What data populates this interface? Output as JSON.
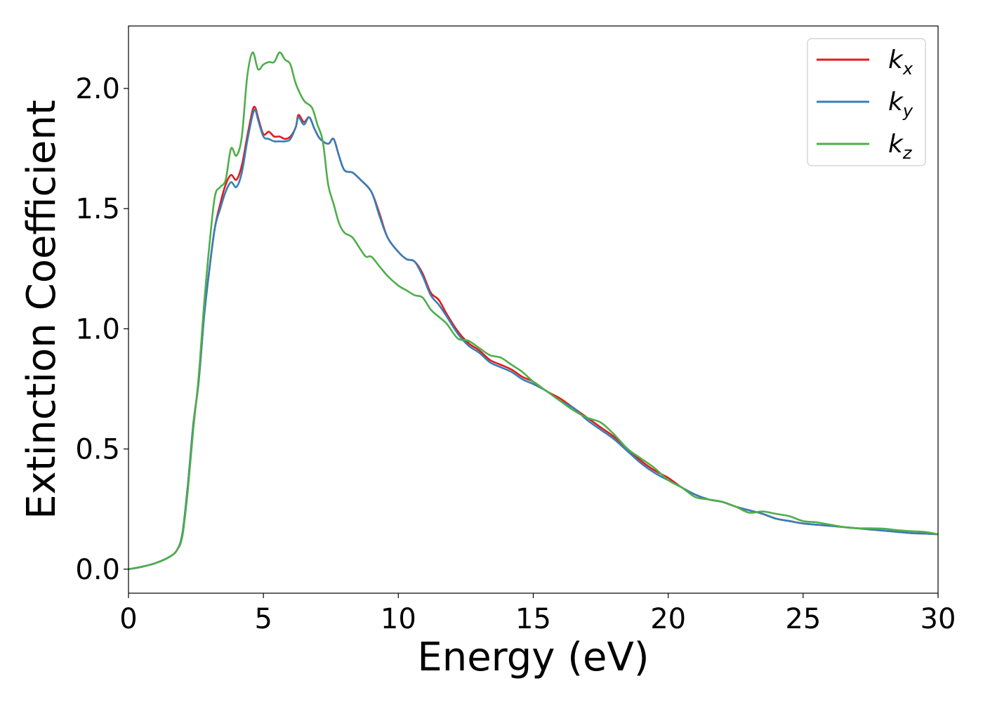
{
  "chart_data": {
    "type": "line",
    "xlabel": "Energy (eV)",
    "ylabel": "Extinction Coefficient",
    "xlim": [
      0,
      30
    ],
    "ylim": [
      -0.1,
      2.26
    ],
    "xticks": [
      0,
      5,
      10,
      15,
      20,
      25,
      30
    ],
    "xtick_labels": [
      "0",
      "5",
      "10",
      "15",
      "20",
      "25",
      "30"
    ],
    "yticks": [
      0.0,
      0.5,
      1.0,
      1.5,
      2.0
    ],
    "ytick_labels": [
      "0.0",
      "0.5",
      "1.0",
      "1.5",
      "2.0"
    ],
    "grid": false,
    "legend_position": "top-right",
    "series": [
      {
        "name": "k_x",
        "legend_base": "k",
        "legend_sub": "x",
        "color": "#e41a1c",
        "x": [
          0,
          0.5,
          1,
          1.5,
          1.8,
          2.0,
          2.2,
          2.4,
          2.6,
          2.8,
          3.0,
          3.2,
          3.4,
          3.6,
          3.8,
          4.0,
          4.2,
          4.4,
          4.6,
          4.7,
          4.8,
          5.0,
          5.2,
          5.4,
          5.6,
          5.8,
          6.0,
          6.2,
          6.3,
          6.5,
          6.7,
          6.9,
          7.1,
          7.4,
          7.6,
          7.8,
          8.0,
          8.3,
          8.6,
          9.0,
          9.3,
          9.6,
          10.0,
          10.3,
          10.6,
          10.9,
          11.2,
          11.5,
          11.8,
          12.2,
          12.6,
          13.0,
          13.4,
          13.8,
          14.2,
          14.6,
          15.0,
          15.5,
          16.0,
          16.5,
          17.0,
          17.5,
          18.0,
          18.5,
          19.0,
          19.5,
          20.0,
          20.5,
          21.0,
          21.5,
          22.0,
          22.5,
          23.0,
          23.5,
          24.0,
          24.5,
          25.0,
          25.5,
          26.0,
          26.5,
          27.0,
          27.5,
          28.0,
          28.5,
          29.0,
          29.5,
          30.0
        ],
        "y": [
          0.0,
          0.01,
          0.025,
          0.05,
          0.08,
          0.15,
          0.35,
          0.6,
          0.78,
          1.05,
          1.25,
          1.42,
          1.52,
          1.6,
          1.64,
          1.62,
          1.68,
          1.8,
          1.91,
          1.92,
          1.88,
          1.81,
          1.82,
          1.8,
          1.8,
          1.79,
          1.8,
          1.84,
          1.89,
          1.86,
          1.88,
          1.83,
          1.79,
          1.77,
          1.79,
          1.72,
          1.66,
          1.65,
          1.62,
          1.57,
          1.48,
          1.38,
          1.32,
          1.29,
          1.28,
          1.23,
          1.15,
          1.12,
          1.06,
          0.99,
          0.94,
          0.91,
          0.87,
          0.85,
          0.83,
          0.8,
          0.78,
          0.74,
          0.71,
          0.67,
          0.63,
          0.59,
          0.55,
          0.5,
          0.45,
          0.41,
          0.38,
          0.34,
          0.31,
          0.29,
          0.28,
          0.26,
          0.245,
          0.23,
          0.21,
          0.2,
          0.19,
          0.185,
          0.18,
          0.175,
          0.17,
          0.165,
          0.16,
          0.155,
          0.15,
          0.148,
          0.145
        ]
      },
      {
        "name": "k_y",
        "legend_base": "k",
        "legend_sub": "y",
        "color": "#377eb8",
        "x": [
          0,
          0.5,
          1,
          1.5,
          1.8,
          2.0,
          2.2,
          2.4,
          2.6,
          2.8,
          3.0,
          3.2,
          3.4,
          3.6,
          3.8,
          4.0,
          4.2,
          4.4,
          4.6,
          4.7,
          4.8,
          5.0,
          5.2,
          5.4,
          5.6,
          5.8,
          6.0,
          6.2,
          6.3,
          6.5,
          6.7,
          6.9,
          7.1,
          7.4,
          7.6,
          7.8,
          8.0,
          8.3,
          8.6,
          9.0,
          9.3,
          9.6,
          10.0,
          10.3,
          10.6,
          10.9,
          11.2,
          11.5,
          11.8,
          12.2,
          12.6,
          13.0,
          13.4,
          13.8,
          14.2,
          14.6,
          15.0,
          15.5,
          16.0,
          16.5,
          17.0,
          17.5,
          18.0,
          18.5,
          19.0,
          19.5,
          20.0,
          20.5,
          21.0,
          21.5,
          22.0,
          22.5,
          23.0,
          23.5,
          24.0,
          24.5,
          25.0,
          25.5,
          26.0,
          26.5,
          27.0,
          27.5,
          28.0,
          28.5,
          29.0,
          29.5,
          30.0
        ],
        "y": [
          0.0,
          0.01,
          0.025,
          0.05,
          0.08,
          0.15,
          0.35,
          0.6,
          0.78,
          1.05,
          1.25,
          1.42,
          1.5,
          1.57,
          1.61,
          1.59,
          1.65,
          1.78,
          1.89,
          1.91,
          1.87,
          1.8,
          1.79,
          1.78,
          1.78,
          1.78,
          1.79,
          1.84,
          1.88,
          1.85,
          1.88,
          1.83,
          1.79,
          1.77,
          1.79,
          1.72,
          1.66,
          1.65,
          1.62,
          1.57,
          1.47,
          1.38,
          1.32,
          1.29,
          1.28,
          1.22,
          1.14,
          1.1,
          1.05,
          0.98,
          0.93,
          0.9,
          0.86,
          0.84,
          0.82,
          0.79,
          0.77,
          0.74,
          0.7,
          0.67,
          0.62,
          0.58,
          0.54,
          0.49,
          0.44,
          0.4,
          0.37,
          0.34,
          0.31,
          0.29,
          0.28,
          0.26,
          0.245,
          0.23,
          0.21,
          0.2,
          0.19,
          0.185,
          0.18,
          0.175,
          0.17,
          0.165,
          0.16,
          0.155,
          0.15,
          0.148,
          0.145
        ]
      },
      {
        "name": "k_z",
        "legend_base": "k",
        "legend_sub": "z",
        "color": "#4daf4a",
        "x": [
          0,
          0.5,
          1,
          1.5,
          1.8,
          2.0,
          2.2,
          2.4,
          2.6,
          2.8,
          3.0,
          3.2,
          3.4,
          3.6,
          3.8,
          4.0,
          4.2,
          4.4,
          4.6,
          4.8,
          5.0,
          5.2,
          5.4,
          5.6,
          5.8,
          6.0,
          6.2,
          6.5,
          6.8,
          7.0,
          7.2,
          7.4,
          7.6,
          7.8,
          8.0,
          8.3,
          8.6,
          8.8,
          9.0,
          9.3,
          9.6,
          10.0,
          10.3,
          10.6,
          10.9,
          11.2,
          11.5,
          11.8,
          12.2,
          12.6,
          13.0,
          13.4,
          13.8,
          14.2,
          14.6,
          15.0,
          15.5,
          16.0,
          16.5,
          17.0,
          17.5,
          18.0,
          18.5,
          19.0,
          19.5,
          20.0,
          20.5,
          21.0,
          21.5,
          22.0,
          22.5,
          23.0,
          23.5,
          24.0,
          24.5,
          25.0,
          25.5,
          26.0,
          26.5,
          27.0,
          27.5,
          28.0,
          28.5,
          29.0,
          29.5,
          30.0
        ],
        "y": [
          0.0,
          0.01,
          0.025,
          0.05,
          0.08,
          0.14,
          0.33,
          0.58,
          0.8,
          1.1,
          1.35,
          1.55,
          1.59,
          1.62,
          1.75,
          1.72,
          1.8,
          2.05,
          2.15,
          2.08,
          2.1,
          2.11,
          2.11,
          2.15,
          2.12,
          2.1,
          2.02,
          1.95,
          1.92,
          1.85,
          1.78,
          1.6,
          1.52,
          1.44,
          1.4,
          1.38,
          1.33,
          1.3,
          1.3,
          1.26,
          1.22,
          1.18,
          1.16,
          1.14,
          1.13,
          1.08,
          1.05,
          1.02,
          0.96,
          0.95,
          0.92,
          0.89,
          0.88,
          0.85,
          0.82,
          0.78,
          0.74,
          0.7,
          0.66,
          0.63,
          0.61,
          0.56,
          0.5,
          0.46,
          0.42,
          0.37,
          0.34,
          0.3,
          0.29,
          0.28,
          0.26,
          0.235,
          0.24,
          0.23,
          0.22,
          0.2,
          0.195,
          0.185,
          0.175,
          0.17,
          0.17,
          0.168,
          0.162,
          0.158,
          0.155,
          0.145
        ]
      }
    ]
  }
}
